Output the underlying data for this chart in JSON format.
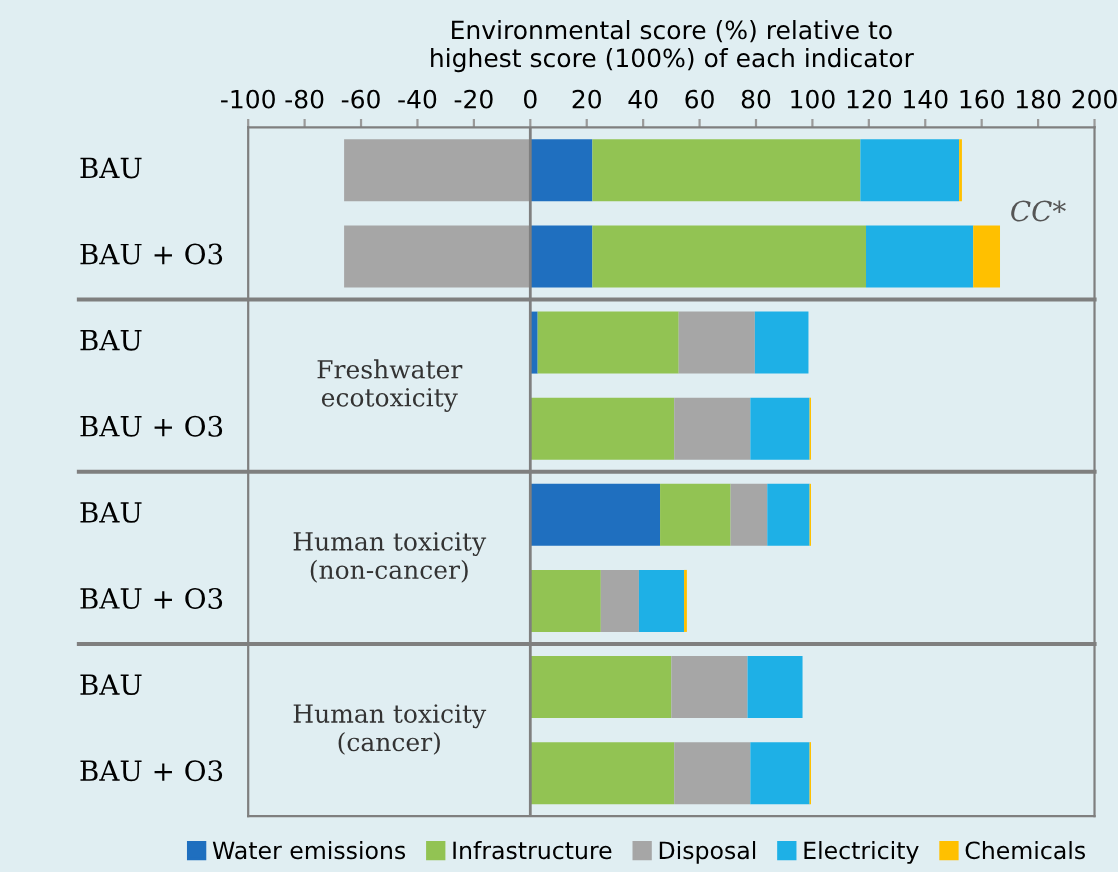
{
  "chart_data": {
    "type": "bar",
    "orientation": "horizontal",
    "stacked": true,
    "xlabel": "Environmental score (%) relative to\nhighest score (100%) of each indicator",
    "categories": [
      "BAU",
      "BAU + O3",
      "BAU",
      "BAU + O3",
      "BAU",
      "BAU + O3",
      "BAU",
      "BAU + O3"
    ],
    "series": [
      {
        "name": "Water emissions",
        "color": "#1f6fbf",
        "values": [
          22,
          22,
          2.6,
          null,
          46,
          null,
          null,
          null
        ]
      },
      {
        "name": "Infrastructure",
        "color": "#92c353",
        "values": [
          95,
          97,
          50,
          51,
          25,
          25,
          50,
          51
        ]
      },
      {
        "name": "Disposal",
        "color": "#a6a6a6",
        "values": [
          -66,
          -66,
          27,
          27,
          13,
          13.5,
          27,
          27
        ]
      },
      {
        "name": "Electricity",
        "color": "#1eb0e6",
        "values": [
          35,
          38,
          19,
          21,
          15,
          16,
          19.5,
          21
        ]
      },
      {
        "name": "Chemicals",
        "color": "#ffc000",
        "values": [
          1,
          9.5,
          null,
          0.5,
          0.5,
          1,
          null,
          0.5
        ]
      }
    ],
    "xlim": [
      -100,
      200
    ],
    "xticks": [
      -100,
      -80,
      -60,
      -40,
      -20,
      0,
      20,
      40,
      60,
      80,
      100,
      120,
      140,
      160,
      180,
      200
    ],
    "ref_lines": [
      {
        "axis": "x",
        "value": 0,
        "color": "#7f7f7f"
      }
    ],
    "annotations": [
      "CC*",
      "Freshwater\necotoxicity",
      "Human toxicity\n(non-cancer)",
      "Human toxicity\n(cancer)"
    ],
    "legend": "bottom",
    "grid": false
  }
}
